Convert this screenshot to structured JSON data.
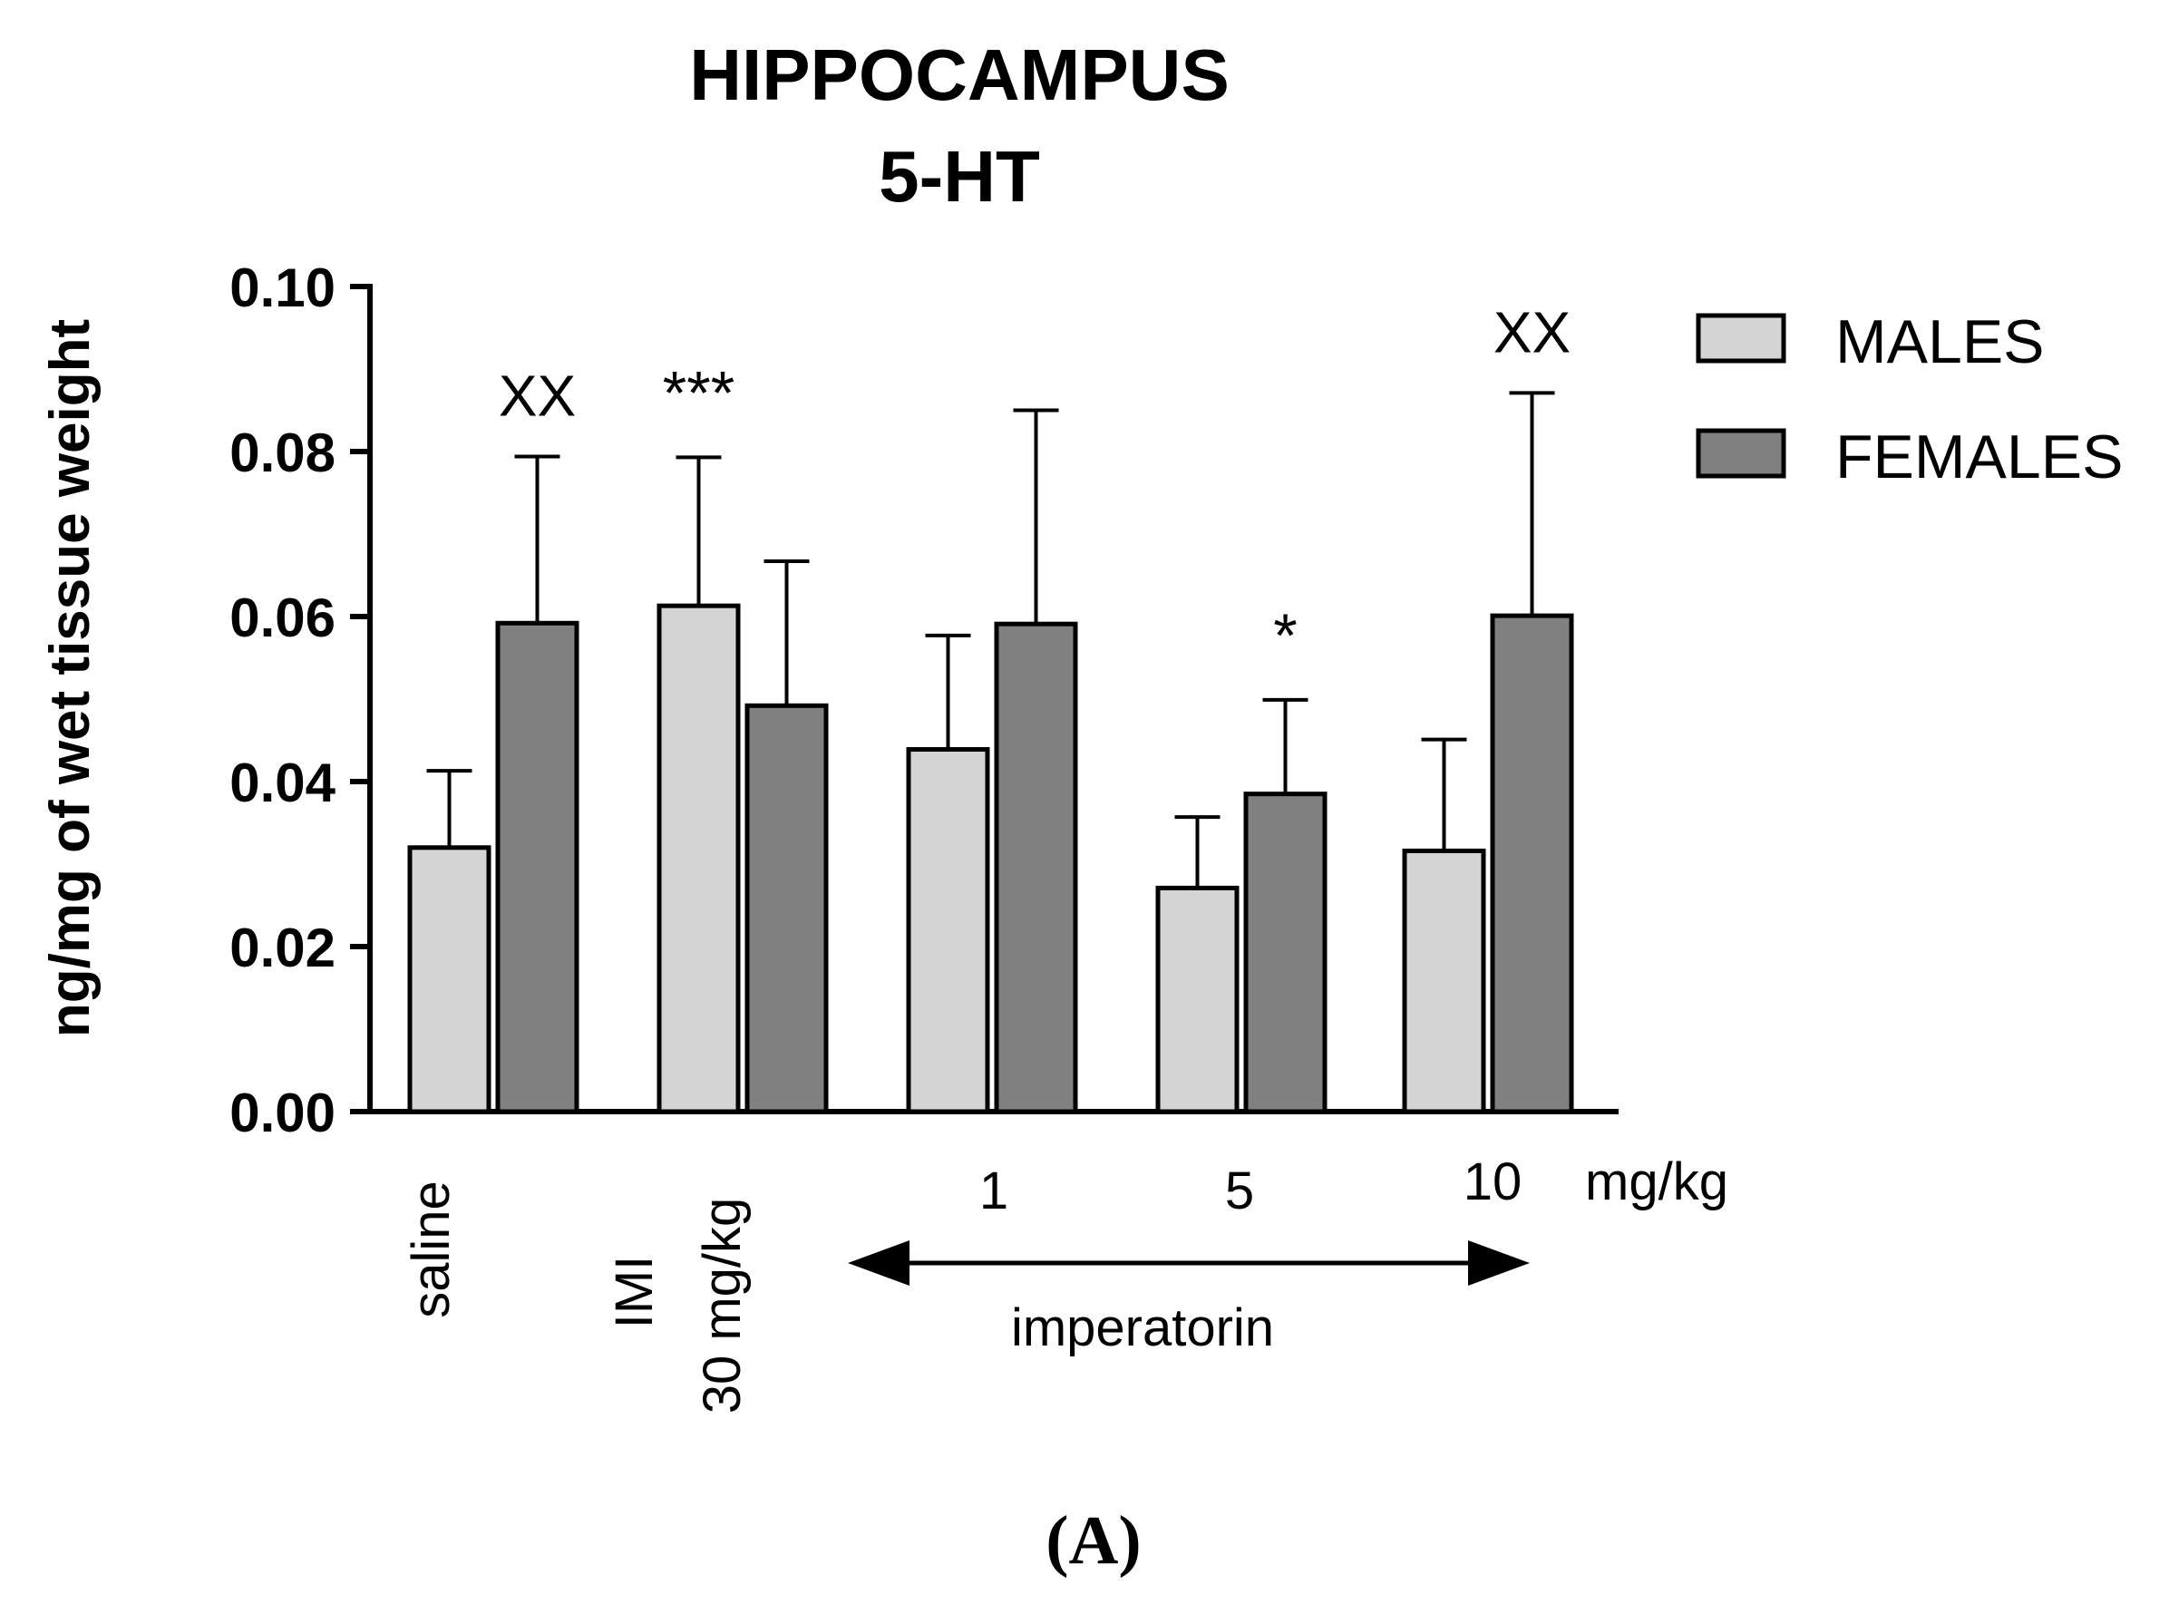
{
  "chart_data": {
    "type": "bar",
    "title": [
      "HIPPOCAMPUS",
      "5-HT"
    ],
    "ylabel": "ng/mg of wet tissue weight",
    "ylim": [
      0,
      0.1
    ],
    "yticks": [
      "0.00",
      "0.02",
      "0.04",
      "0.06",
      "0.08",
      "0.10"
    ],
    "categories": [
      "saline",
      "IMI 30 mg/kg",
      "1",
      "5",
      "10"
    ],
    "category_labels": {
      "saline": "saline",
      "imi_line1": "IMI",
      "imi_line2": "30 mg/kg",
      "dose1": "1",
      "dose5": "5",
      "dose10": "10",
      "unit": "mg/kg"
    },
    "group_label": "imperatorin",
    "series": [
      {
        "name": "MALES",
        "color": "#d4d4d4",
        "values": [
          0.032,
          0.0613,
          0.0439,
          0.0271,
          0.0316
        ],
        "errors": [
          0.0093,
          0.018,
          0.0138,
          0.0086,
          0.0135
        ]
      },
      {
        "name": "FEMALES",
        "color": "#808080",
        "values": [
          0.0592,
          0.0492,
          0.0591,
          0.0385,
          0.0601
        ],
        "errors": [
          0.0202,
          0.0175,
          0.0259,
          0.0114,
          0.027
        ]
      }
    ],
    "annotations": [
      {
        "text": "XX",
        "category": 0,
        "series": 1
      },
      {
        "text": "***",
        "category": 1,
        "series": 0
      },
      {
        "text": "*",
        "category": 3,
        "series": 1
      },
      {
        "text": "XX",
        "category": 4,
        "series": 1
      }
    ],
    "legend_position": "top-right",
    "panel_label": "(A)"
  }
}
